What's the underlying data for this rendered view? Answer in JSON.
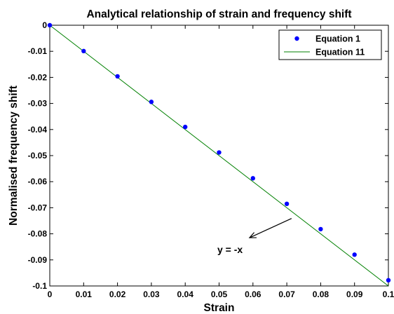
{
  "chart_data": {
    "type": "scatter",
    "title": "Analytical relationship of strain and frequency shift",
    "xlabel": "Strain",
    "ylabel": "Normalised frequency shift",
    "xlim": [
      0,
      0.1
    ],
    "ylim": [
      -0.1,
      0
    ],
    "x_ticks": [
      0,
      0.01,
      0.02,
      0.03,
      0.04,
      0.05,
      0.06,
      0.07,
      0.08,
      0.09,
      0.1
    ],
    "x_tick_labels": [
      "0",
      "0.01",
      "0.02",
      "0.03",
      "0.04",
      "0.05",
      "0.06",
      "0.07",
      "0.08",
      "0.09",
      "0.1"
    ],
    "y_ticks": [
      0,
      -0.01,
      -0.02,
      -0.03,
      -0.04,
      -0.05,
      -0.06,
      -0.07,
      -0.08,
      -0.09,
      -0.1
    ],
    "y_tick_labels": [
      "0",
      "-0.01",
      "-0.02",
      "-0.03",
      "-0.04",
      "-0.05",
      "-0.06",
      "-0.07",
      "-0.08",
      "-0.09",
      "-0.1"
    ],
    "grid": false,
    "legend_position": "top-right",
    "series": [
      {
        "name": "Equation 1",
        "type": "scatter",
        "color": "#0000ff",
        "x": [
          0,
          0.01,
          0.02,
          0.03,
          0.04,
          0.05,
          0.06,
          0.07,
          0.08,
          0.09,
          0.1
        ],
        "y": [
          0,
          -0.0099,
          -0.0196,
          -0.0294,
          -0.039,
          -0.0488,
          -0.0587,
          -0.0685,
          -0.0782,
          -0.088,
          -0.0978
        ]
      },
      {
        "name": "Equation 11",
        "type": "line",
        "color": "#008000",
        "x": [
          0,
          0.1
        ],
        "y": [
          0,
          -0.1
        ]
      }
    ],
    "annotations": [
      {
        "text": "y = -x",
        "arrow_from": [
          0.0714,
          -0.0741
        ],
        "arrow_to": [
          0.059,
          -0.0815
        ]
      }
    ]
  }
}
